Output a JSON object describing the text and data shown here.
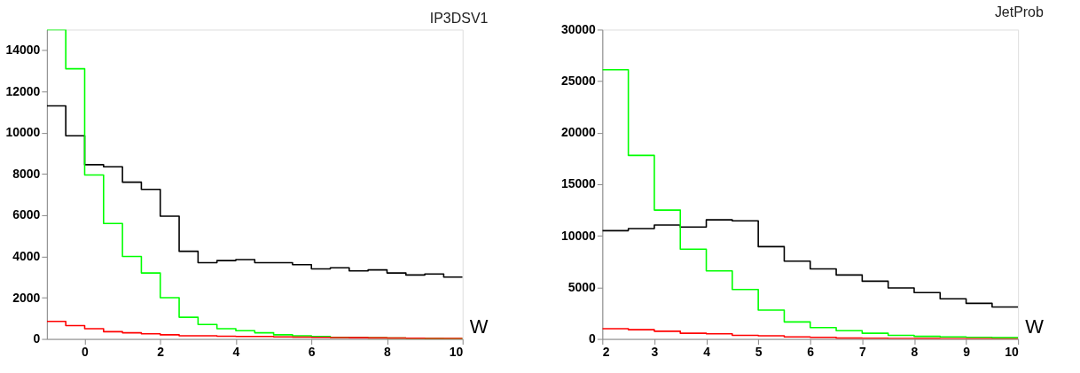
{
  "chart_data": [
    {
      "type": "histogram",
      "title": "IP3DSV1",
      "xlabel": "W",
      "bins": [
        -1,
        -0.5,
        0,
        0.5,
        1,
        1.5,
        2,
        2.5,
        3,
        3.5,
        4,
        4.5,
        5,
        5.5,
        6,
        6.5,
        7,
        7.5,
        8,
        8.5,
        9,
        9.5,
        10
      ],
      "xlim": [
        -1,
        10
      ],
      "xticks": [
        0,
        2,
        4,
        6,
        8,
        10
      ],
      "ylim": [
        0,
        15000
      ],
      "yticks": [
        0,
        2000,
        4000,
        6000,
        8000,
        10000,
        12000,
        14000
      ],
      "grid": false,
      "series": [
        {
          "color": "#000000",
          "values": [
            11300,
            9850,
            8450,
            8350,
            7600,
            7250,
            5950,
            4250,
            3700,
            3800,
            3850,
            3700,
            3700,
            3600,
            3400,
            3450,
            3300,
            3350,
            3200,
            3100,
            3150,
            3000
          ]
        },
        {
          "color": "#00ff00",
          "values": [
            15000,
            13100,
            7950,
            5600,
            4000,
            3200,
            2000,
            1050,
            700,
            500,
            400,
            300,
            200,
            150,
            120,
            80,
            60,
            50,
            40,
            30,
            20,
            10
          ]
        },
        {
          "color": "#ff0000",
          "values": [
            850,
            650,
            500,
            350,
            300,
            250,
            200,
            150,
            150,
            130,
            120,
            120,
            100,
            90,
            80,
            70,
            60,
            50,
            40,
            30,
            20,
            20
          ]
        }
      ]
    },
    {
      "type": "histogram",
      "title": "JetProb",
      "xlabel": "W",
      "bins": [
        2,
        2.5,
        3,
        3.5,
        4,
        4.5,
        5,
        5.5,
        6,
        6.5,
        7,
        7.5,
        8,
        8.5,
        9,
        9.5,
        10
      ],
      "xlim": [
        2,
        10
      ],
      "xticks": [
        2,
        3,
        4,
        5,
        6,
        7,
        8,
        9,
        10
      ],
      "ylim": [
        0,
        30000
      ],
      "yticks": [
        0,
        5000,
        10000,
        15000,
        20000,
        25000,
        30000
      ],
      "grid": false,
      "series": [
        {
          "color": "#000000",
          "values": [
            10500,
            10700,
            11050,
            10850,
            11550,
            11450,
            8950,
            7550,
            6800,
            6200,
            5600,
            4950,
            4500,
            3900,
            3450,
            3100
          ]
        },
        {
          "color": "#00ff00",
          "values": [
            26100,
            17800,
            12500,
            8700,
            6600,
            4800,
            2800,
            1650,
            1100,
            800,
            550,
            350,
            250,
            200,
            150,
            120
          ]
        },
        {
          "color": "#ff0000",
          "values": [
            1000,
            900,
            750,
            550,
            500,
            350,
            300,
            200,
            150,
            80,
            70,
            50,
            40,
            30,
            20,
            10
          ]
        }
      ]
    }
  ]
}
